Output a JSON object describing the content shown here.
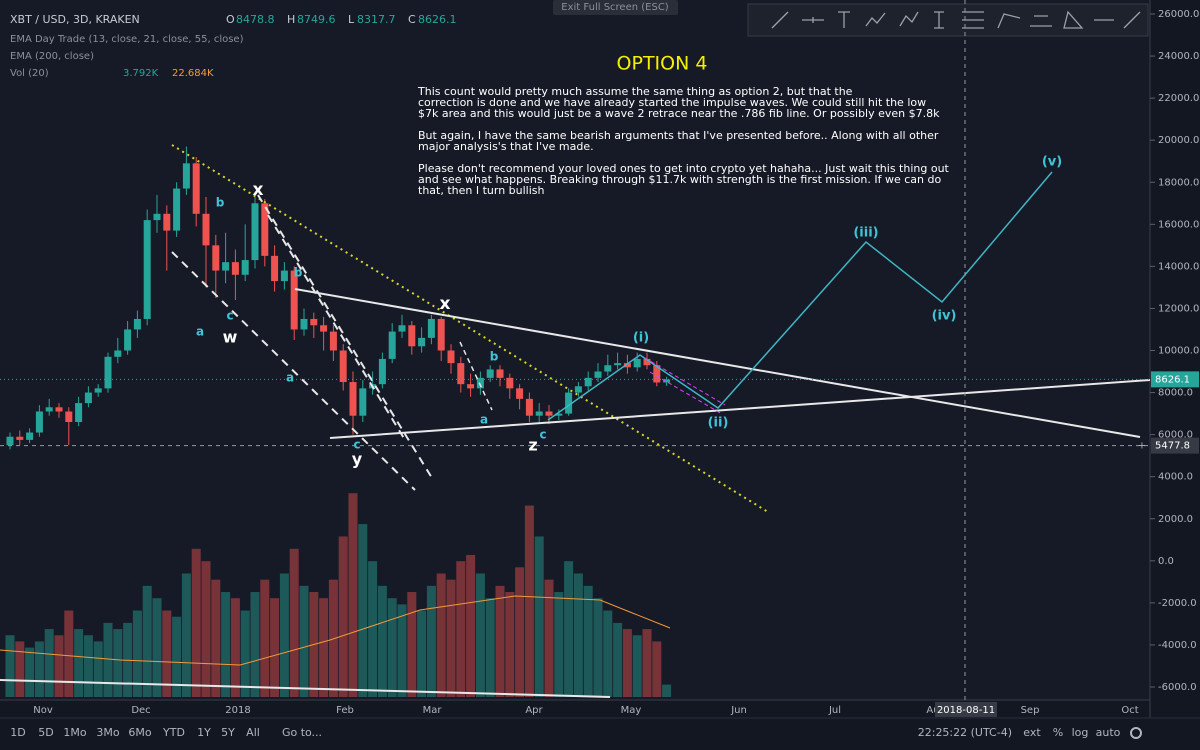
{
  "header": {
    "symbol": "XBT / USD, 3D, KRAKEN",
    "o_label": "O",
    "open": "8478.8",
    "h_label": "H",
    "high": "8749.6",
    "l_label": "L",
    "low": "8317.7",
    "c_label": "C",
    "close": "8626.1",
    "ema_day_trade": "EMA Day Trade (13, close, 21, close, 55, close)",
    "ema_200": "EMA (200, close)",
    "volume_label": "Vol (20)",
    "volume_value": "3.792K",
    "volume_ma": "22.684K"
  },
  "exit_full_screen": "Exit Full Screen (ESC)",
  "title": "OPTION 4",
  "paragraphs": [
    [
      "This count would pretty much assume the same thing as option 2, but that the",
      "correction is done and we have already started the impulse waves. We could still hit the low",
      "$7k area and this would just be a wave 2 retrace near the .786 fib line. Or possibly even $7.8k"
    ],
    [
      "But again, I have the same bearish arguments that I've presented before.. Along with all other",
      "major analysis's that I've made."
    ],
    [
      "Please don't recommend your loved ones to get into crypto yet hahaha... Just wait this thing out",
      "and see what happens. Breaking through $11.7k with strength is the first mission. If we can do",
      "that, then I turn bullish"
    ]
  ],
  "wave_labels": [
    "x",
    "b",
    "a",
    "c",
    "w",
    "b",
    "a",
    "c",
    "y",
    "x",
    "b",
    "a",
    "c",
    "z",
    "(i)",
    "(ii)",
    "(iii)",
    "(iv)",
    "(v)"
  ],
  "chart_data": {
    "type": "candlestick",
    "up_color": "#26a69a",
    "down_color": "#ef5350",
    "open": [
      5500,
      5900,
      5750,
      6100,
      7100,
      7300,
      7100,
      6600,
      7500,
      8000,
      8200,
      9700,
      10000,
      11000,
      11500,
      16200,
      16500,
      15700,
      17700,
      18900,
      16500,
      15000,
      13800,
      14200,
      13600,
      14300,
      17000,
      14500,
      13300,
      13800,
      11000,
      11500,
      11200,
      10900,
      10000,
      8500,
      6900,
      8200,
      8400,
      9600,
      10900,
      11200,
      10200,
      10600,
      11500,
      10000,
      9400,
      8400,
      8200,
      8700,
      9100,
      8700,
      8200,
      7700,
      6900,
      7100,
      6900,
      7000,
      8000,
      8300,
      8700,
      9000,
      9300,
      9400,
      9200,
      9600,
      9300,
      8478.8
    ],
    "high": [
      6100,
      6200,
      6300,
      7400,
      7700,
      7500,
      7300,
      7800,
      8300,
      8400,
      9900,
      10600,
      11400,
      11900,
      16700,
      17400,
      16900,
      18000,
      19700,
      19200,
      17300,
      15500,
      15600,
      14800,
      16000,
      17300,
      17200,
      15000,
      14200,
      14000,
      12000,
      11800,
      11600,
      11200,
      10300,
      9000,
      8600,
      9000,
      9900,
      11300,
      11700,
      11400,
      11100,
      11700,
      11600,
      10300,
      9700,
      8900,
      9000,
      9300,
      9300,
      8900,
      8400,
      8000,
      7500,
      7400,
      7200,
      8200,
      8500,
      9000,
      9400,
      9800,
      9900,
      9800,
      9900,
      9900,
      9500,
      8749.6
    ],
    "low": [
      5300,
      5500,
      5600,
      5900,
      6900,
      6800,
      5500,
      6400,
      7300,
      7800,
      8000,
      9400,
      9800,
      10600,
      11200,
      15600,
      13800,
      15400,
      17400,
      15900,
      13000,
      12500,
      13200,
      12400,
      13300,
      13900,
      14000,
      12800,
      12900,
      10500,
      10700,
      10600,
      10000,
      9500,
      8100,
      6000,
      6600,
      7900,
      8200,
      9400,
      10600,
      9800,
      9900,
      10300,
      9500,
      8900,
      8000,
      7800,
      7900,
      8500,
      8300,
      7700,
      7200,
      6600,
      6600,
      6500,
      6700,
      6900,
      7800,
      8100,
      8500,
      8800,
      9100,
      8900,
      9000,
      9100,
      8300,
      8317.7
    ],
    "close": [
      5900,
      5750,
      6100,
      7100,
      7300,
      7100,
      6600,
      7500,
      8000,
      8200,
      9700,
      10000,
      11000,
      11500,
      16200,
      16500,
      15700,
      17700,
      18900,
      16500,
      15000,
      13800,
      14200,
      13600,
      14300,
      17000,
      14500,
      13300,
      13800,
      11000,
      11500,
      11200,
      10900,
      10000,
      8500,
      6900,
      8200,
      8400,
      9600,
      10900,
      11200,
      10200,
      10600,
      11500,
      10000,
      9400,
      8400,
      8200,
      8700,
      9100,
      8700,
      8200,
      7700,
      6900,
      7100,
      6900,
      7000,
      8000,
      8300,
      8700,
      9000,
      9300,
      9400,
      9200,
      9600,
      9300,
      8480,
      8626.1
    ],
    "volume": [
      50,
      45,
      40,
      45,
      55,
      50,
      70,
      55,
      50,
      45,
      60,
      55,
      60,
      70,
      90,
      80,
      70,
      65,
      100,
      120,
      110,
      95,
      85,
      80,
      70,
      85,
      95,
      80,
      100,
      120,
      90,
      85,
      80,
      95,
      130,
      165,
      140,
      110,
      90,
      80,
      75,
      85,
      70,
      90,
      100,
      95,
      110,
      115,
      100,
      80,
      90,
      85,
      105,
      155,
      130,
      95,
      85,
      110,
      100,
      90,
      80,
      70,
      60,
      55,
      50,
      55,
      45,
      10
    ],
    "vlim": [
      0,
      200
    ],
    "ylim": [
      -6000,
      26000
    ],
    "yticks": [
      {
        "value": 26000,
        "label": "26000.0"
      },
      {
        "value": 24000,
        "label": "24000.0"
      },
      {
        "value": 22000,
        "label": "22000.0"
      },
      {
        "value": 20000,
        "label": "20000.0"
      },
      {
        "value": 18000,
        "label": "18000.0"
      },
      {
        "value": 16000,
        "label": "16000.0"
      },
      {
        "value": 14000,
        "label": "14000.0"
      },
      {
        "value": 12000,
        "label": "12000.0"
      },
      {
        "value": 10000,
        "label": "10000.0"
      },
      {
        "value": 8000,
        "label": "8000.0"
      },
      {
        "value": 6000,
        "label": "6000.0"
      },
      {
        "value": 4000,
        "label": "4000.0"
      },
      {
        "value": 2000,
        "label": "2000.0"
      },
      {
        "value": 0,
        "label": "0.0"
      },
      {
        "value": -2000,
        "label": "-2000.0"
      },
      {
        "value": -4000,
        "label": "-4000.0"
      },
      {
        "value": -6000,
        "label": "-6000.0"
      }
    ],
    "x_labels": [
      "Nov",
      "Dec",
      "2018",
      "Feb",
      "Mar",
      "Apr",
      "May",
      "Jun",
      "Jul",
      "Au",
      "Sep",
      "Oct"
    ],
    "last_price": 8626.1,
    "crosshair": {
      "date": "2018-08-11",
      "price": 5477.8
    }
  },
  "toolbar": {
    "ranges": [
      "1D",
      "5D",
      "1Mo",
      "3Mo",
      "6Mo",
      "YTD",
      "1Y",
      "5Y",
      "All",
      "Go to..."
    ],
    "time": "22:25:22 (UTC-4)",
    "options": [
      "ext",
      "%",
      "log",
      "auto"
    ]
  }
}
